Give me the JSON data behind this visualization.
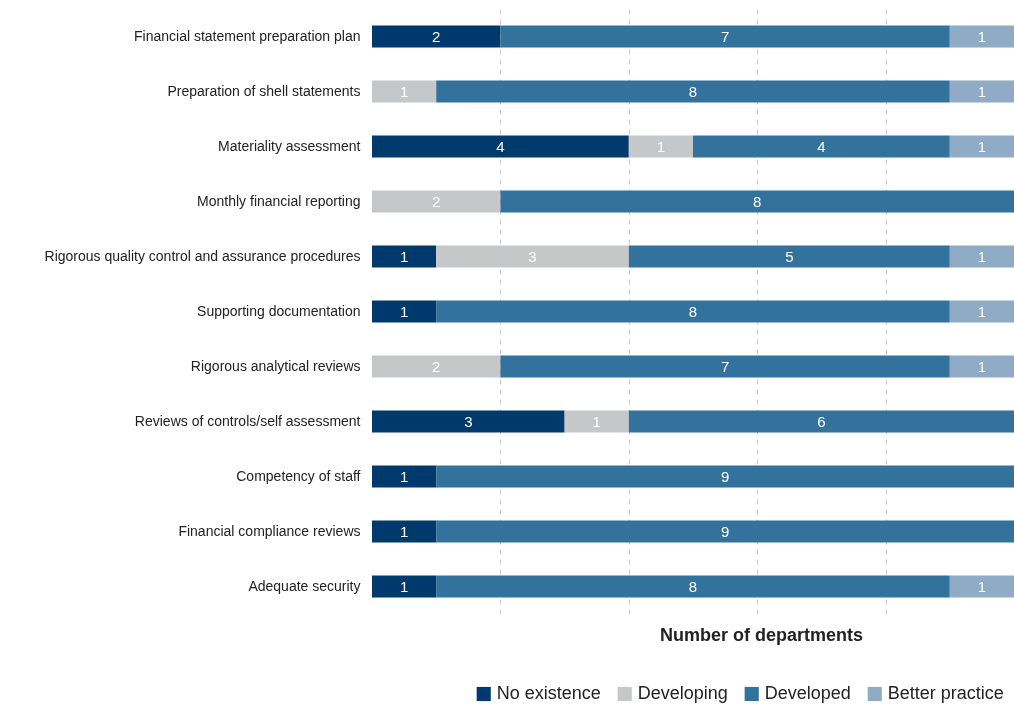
{
  "chart_data": {
    "type": "bar",
    "orientation": "horizontal",
    "stacked": true,
    "categories": [
      "Financial statement preparation plan",
      "Preparation of shell statements",
      "Materiality assessment",
      "Monthly financial reporting",
      "Rigorous quality control and assurance procedures",
      "Supporting documentation",
      "Rigorous analytical reviews",
      "Reviews of controls/self assessment",
      "Competency of staff",
      "Financial compliance reviews",
      "Adequate security"
    ],
    "series": [
      {
        "name": "No existence",
        "color": "#003a6c",
        "values": [
          2,
          null,
          4,
          null,
          1,
          1,
          null,
          3,
          1,
          1,
          1
        ]
      },
      {
        "name": "Developing",
        "color": "#c6c7c9",
        "values": [
          null,
          1,
          1,
          2,
          3,
          null,
          2,
          1,
          null,
          null,
          null
        ]
      },
      {
        "name": "Developed",
        "color": "#33729c",
        "values": [
          7,
          8,
          4,
          8,
          5,
          8,
          7,
          6,
          9,
          9,
          8
        ]
      },
      {
        "name": "Better practice",
        "color": "#8fabc6",
        "values": [
          1,
          1,
          1,
          null,
          1,
          1,
          1,
          null,
          null,
          null,
          1
        ]
      }
    ],
    "xlabel": "Number of departments",
    "xlim": [
      0,
      10
    ],
    "xticks": [
      {
        "value": 2,
        "label": null
      },
      {
        "value": 4,
        "label": null
      },
      {
        "value": 6,
        "label": null
      },
      {
        "value": 8,
        "label": null
      }
    ],
    "grid": "x",
    "tick_labels": "y",
    "legend": "bottom",
    "data_labels": true
  }
}
